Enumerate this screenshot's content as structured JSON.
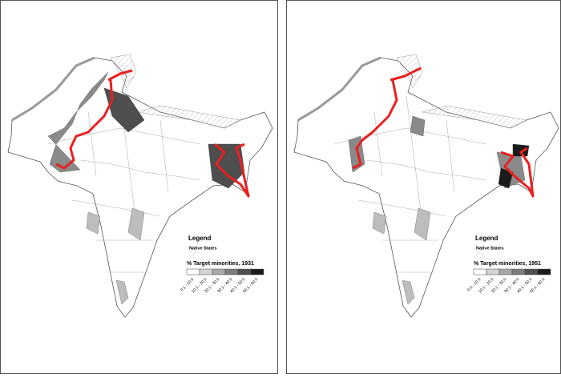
{
  "panels": [
    {
      "legend_title": "Legend",
      "native_states": "Native States",
      "scale_title": "% Target minorities, 1931",
      "classes": [
        {
          "label": "0.1 - 10.0",
          "color": "#ffffff"
        },
        {
          "label": "10.1 - 20.0",
          "color": "#d4d4d4"
        },
        {
          "label": "20.1 - 30.0",
          "color": "#a8a8a8"
        },
        {
          "label": "30.1 - 40.0",
          "color": "#7c7c7c"
        },
        {
          "label": "40.1 - 50.0",
          "color": "#4e4e4e"
        },
        {
          "label": "50.1 - 60.0",
          "color": "#1c1c1c"
        }
      ]
    },
    {
      "legend_title": "Legend",
      "native_states": "Native States",
      "scale_title": "% Target minorities, 1951",
      "classes": [
        {
          "label": "0.0 - 10.0",
          "color": "#ffffff"
        },
        {
          "label": "10.1 - 20.0",
          "color": "#d4d4d4"
        },
        {
          "label": "20.1 - 30.0",
          "color": "#a8a8a8"
        },
        {
          "label": "30.1 - 40.0",
          "color": "#7c7c7c"
        },
        {
          "label": "40.1 - 50.0",
          "color": "#4e4e4e"
        },
        {
          "label": "50.1 - 60.0",
          "color": "#1c1c1c"
        }
      ]
    }
  ]
}
